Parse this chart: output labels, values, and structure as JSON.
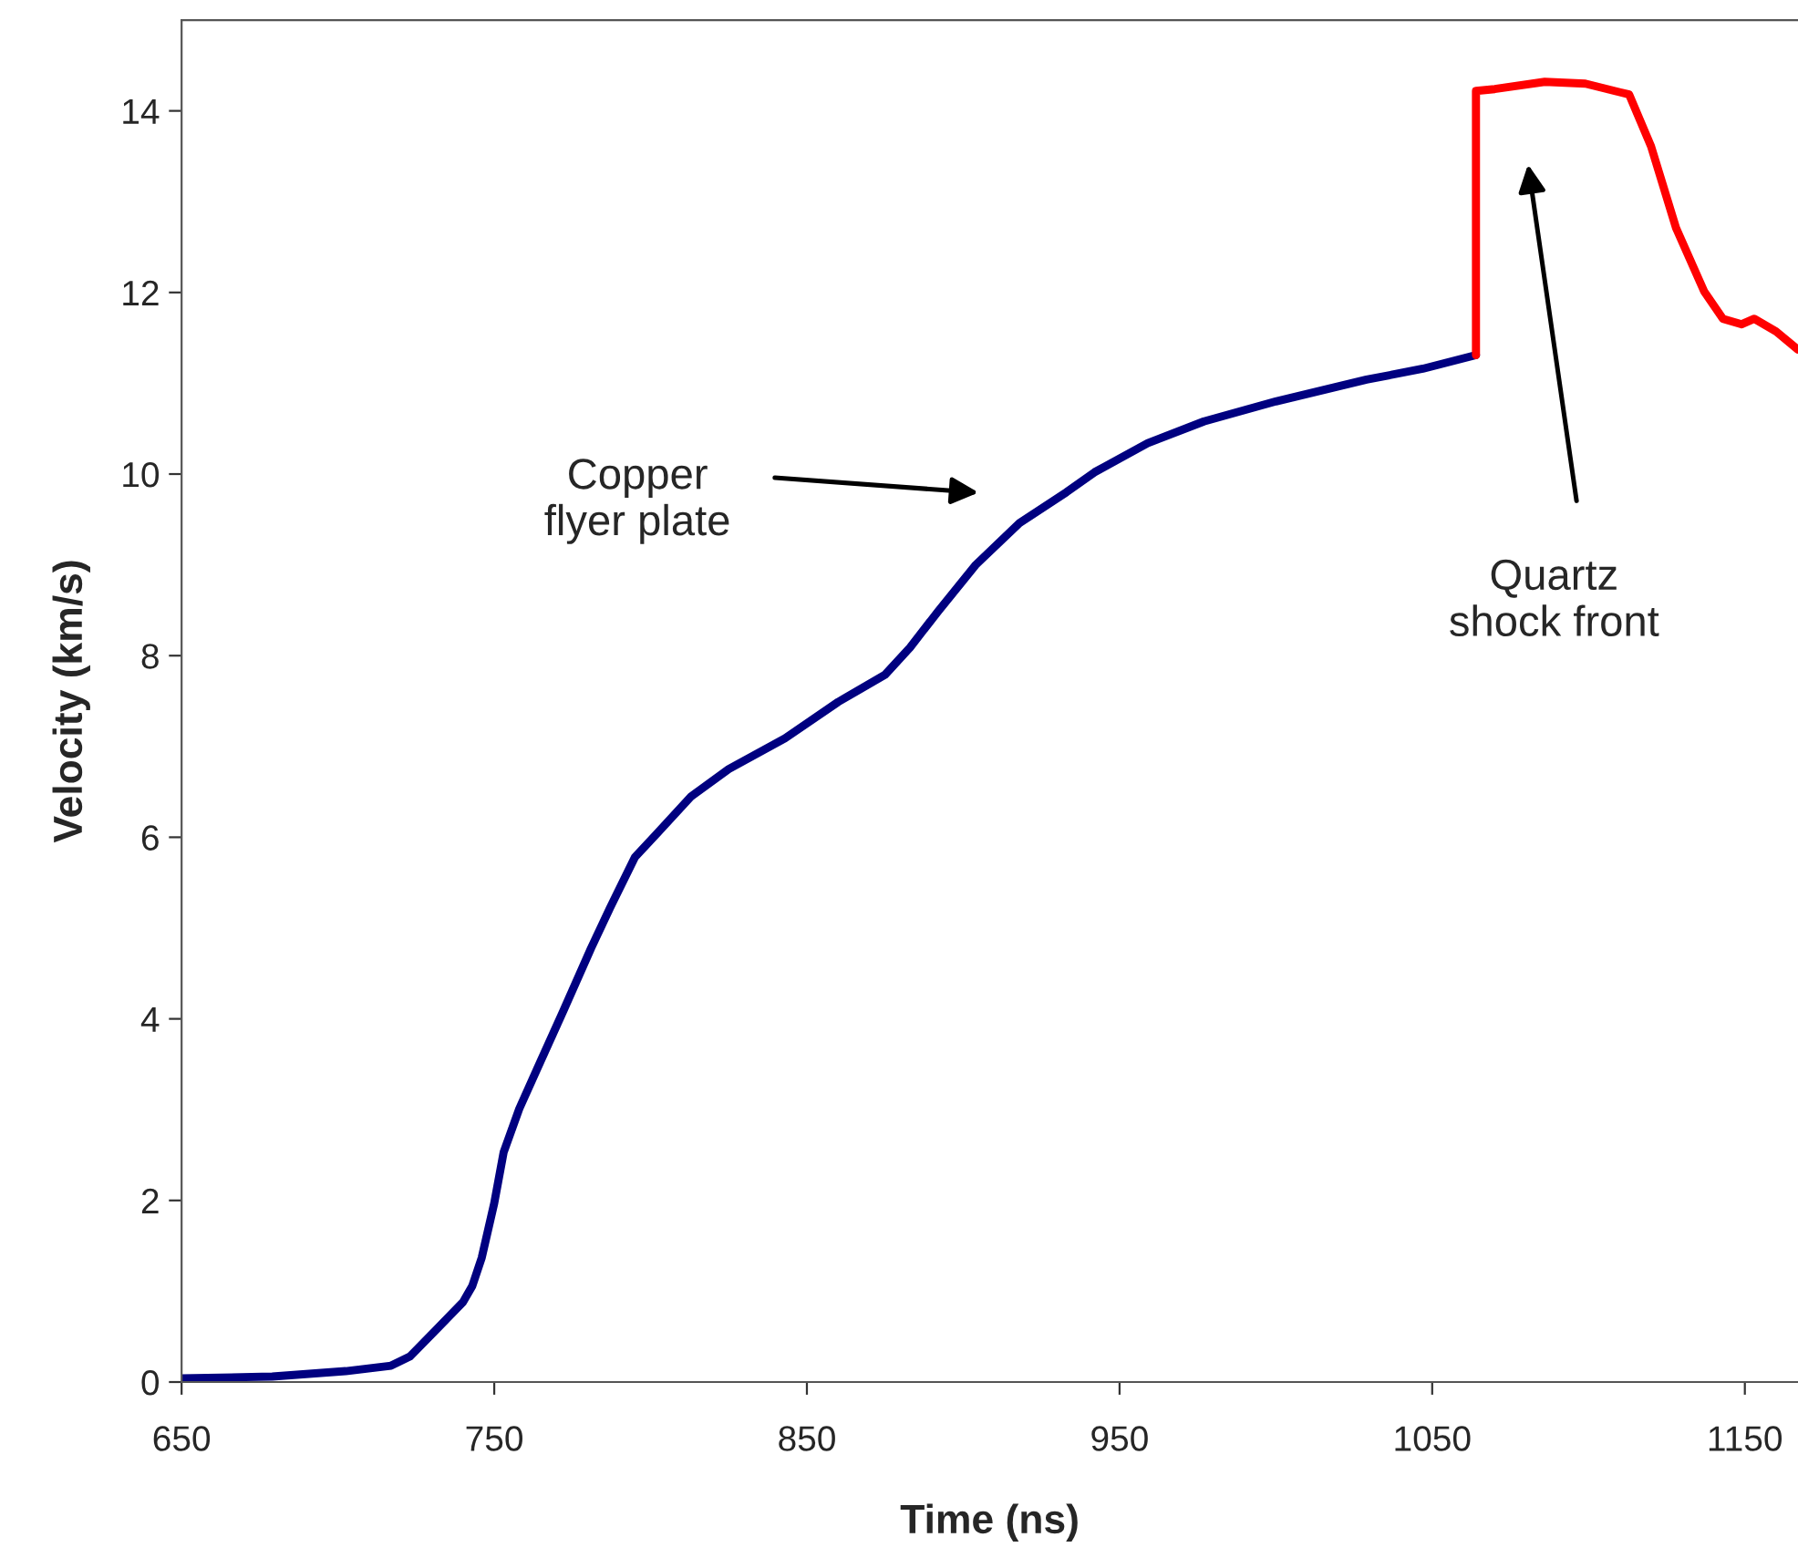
{
  "chart_data": {
    "type": "line",
    "xlabel": "Time (ns)",
    "ylabel": "Velocity (km/s)",
    "xlim": [
      650,
      1167
    ],
    "xticks": [
      650,
      750,
      850,
      950,
      1050,
      1150
    ],
    "ylim": [
      0,
      15
    ],
    "yticks": [
      0,
      2,
      4,
      6,
      8,
      10,
      12,
      14
    ],
    "grid": false,
    "marker": "none",
    "line_style": "solid",
    "series": [
      {
        "color": "#000080",
        "x": [
          650,
          679,
          702.5,
          717,
          723,
          731,
          740,
          743,
          746,
          750,
          753,
          758,
          764,
          772,
          781,
          787,
          795,
          802,
          813,
          825,
          843,
          860,
          875,
          883,
          892,
          904,
          918,
          933,
          942,
          959,
          977,
          1000,
          1029,
          1047,
          1064
        ],
        "values": [
          0.04,
          0.06,
          0.12,
          0.18,
          0.28,
          0.56,
          0.88,
          1.06,
          1.37,
          1.97,
          2.53,
          3.01,
          3.47,
          4.08,
          4.78,
          5.22,
          5.78,
          6.04,
          6.45,
          6.75,
          7.09,
          7.49,
          7.79,
          8.09,
          8.49,
          9.0,
          9.46,
          9.8,
          10.02,
          10.34,
          10.58,
          10.8,
          11.04,
          11.16,
          11.31
        ]
      },
      {
        "color": "#ff0000",
        "x": [
          1064,
          1064,
          1070,
          1086,
          1099,
          1113,
          1120,
          1128,
          1137,
          1143,
          1149,
          1153,
          1160,
          1167
        ],
        "values": [
          11.31,
          14.22,
          14.24,
          14.32,
          14.3,
          14.18,
          13.61,
          12.71,
          12.01,
          11.71,
          11.65,
          11.71,
          11.57,
          11.37
        ]
      }
    ],
    "annotations": [
      "Copper\nflyer plate",
      "Quartz\nshock front"
    ]
  }
}
